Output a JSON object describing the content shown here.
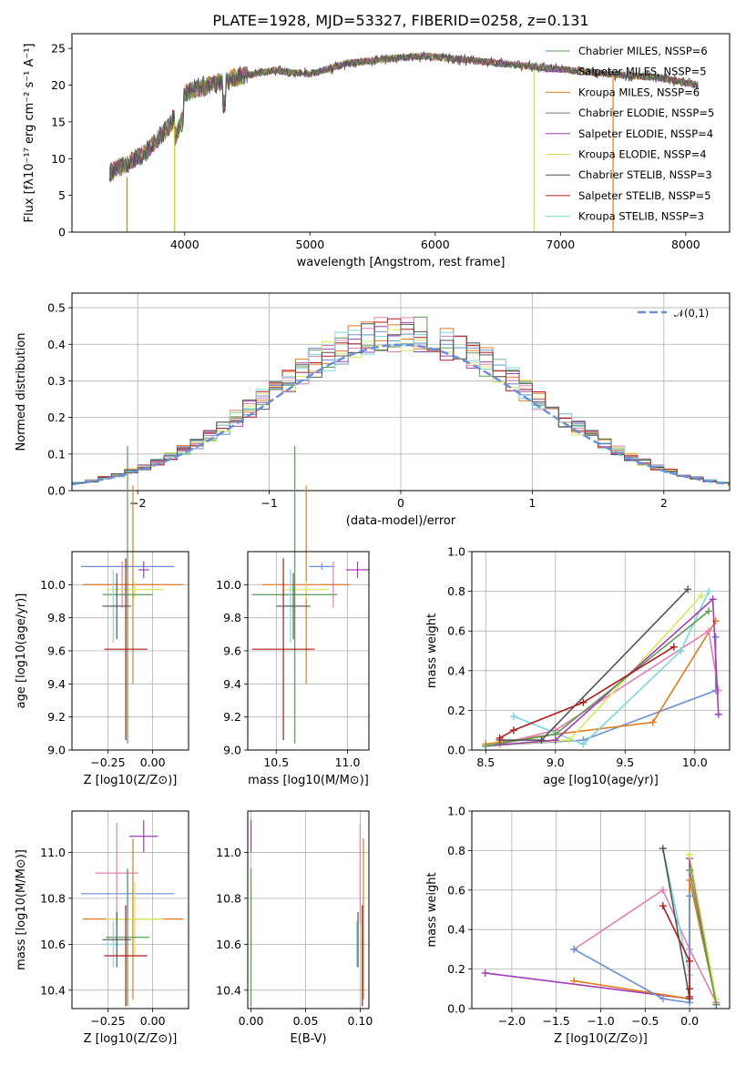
{
  "chart_data": [
    {
      "id": "spectrum",
      "type": "line",
      "title": "PLATE=1928, MJD=53327, FIBERID=0258, z=0.131",
      "xlabel": "wavelength [Angstrom, rest frame]",
      "ylabel": "Flux [fλ10⁻¹⁷ erg cm⁻² s⁻¹ A⁻¹]",
      "xlim": [
        3100,
        8350
      ],
      "ylim": [
        0,
        27
      ],
      "xticks": [
        "4000",
        "5000",
        "6000",
        "7000",
        "8000"
      ],
      "yticks": [
        "0",
        "5",
        "10",
        "15",
        "20",
        "25"
      ],
      "legend_position": "right",
      "series": [
        {
          "name": "Chabrier MILES, NSSP=6",
          "color": "#5a9a55"
        },
        {
          "name": "Salpeter MILES, NSSP=5",
          "color": "#9a40b0"
        },
        {
          "name": "Kroupa MILES, NSSP=6",
          "color": "#e07b1e"
        },
        {
          "name": "Chabrier ELODIE, NSSP=5",
          "color": "#5e8a5c"
        },
        {
          "name": "Salpeter ELODIE, NSSP=4",
          "color": "#a23cb4"
        },
        {
          "name": "Kroupa ELODIE, NSSP=4",
          "color": "#dada4a"
        },
        {
          "name": "Chabrier STELIB, NSSP=3",
          "color": "#555555"
        },
        {
          "name": "Salpeter STELIB, NSSP=5",
          "color": "#b01a1a"
        },
        {
          "name": "Kroupa STELIB, NSSP=3",
          "color": "#7fd6e0"
        }
      ],
      "continuum_points": [
        [
          3400,
          8
        ],
        [
          3500,
          9
        ],
        [
          3700,
          11
        ],
        [
          3900,
          15
        ],
        [
          4000,
          19
        ],
        [
          4200,
          20
        ],
        [
          4400,
          21
        ],
        [
          4700,
          22
        ],
        [
          5000,
          21.5
        ],
        [
          5300,
          23
        ],
        [
          5600,
          23.5
        ],
        [
          5900,
          24
        ],
        [
          6200,
          23.5
        ],
        [
          6500,
          23
        ],
        [
          6800,
          22.5
        ],
        [
          7100,
          22
        ],
        [
          7400,
          21.5
        ],
        [
          7800,
          21
        ],
        [
          8100,
          20
        ]
      ]
    },
    {
      "id": "residuals",
      "type": "histogram",
      "xlabel": "(data-model)/error",
      "ylabel": "Normed distribution",
      "xlim": [
        -2.5,
        2.5
      ],
      "ylim": [
        0,
        0.54
      ],
      "xticks": [
        "−2",
        "−1",
        "0",
        "1",
        "2"
      ],
      "yticks": [
        "0.0",
        "0.1",
        "0.2",
        "0.3",
        "0.4",
        "0.5"
      ],
      "reference_curve": {
        "name": "𝒩(0,1)",
        "mean": 0,
        "sigma": 1
      },
      "histogram_colors": [
        "#5a9a55",
        "#9a40b0",
        "#e07b1e",
        "#e27fb0",
        "#6b8fd6",
        "#d8e85a",
        "#b01a1a",
        "#7fd6e0",
        "#555555"
      ]
    },
    {
      "id": "age-vs-Z",
      "type": "errorbar",
      "xlabel": "Z [log10(Z/Z⊙)]",
      "ylabel": "age  [log10(age/yr)]",
      "xlim": [
        -0.45,
        0.2
      ],
      "ylim": [
        9.0,
        10.2
      ],
      "xticks": [
        "−0.25",
        "0.00"
      ],
      "yticks": [
        "9.0",
        "9.2",
        "9.4",
        "9.6",
        "9.8",
        "10.0"
      ],
      "points": [
        {
          "x": -0.14,
          "xerr": 0.26,
          "y": 10.11,
          "yerr": 0.02,
          "color": "#6b8fd6"
        },
        {
          "x": -0.05,
          "xerr": 0.03,
          "y": 10.09,
          "yerr": 0.05,
          "color": "#a23cb4"
        },
        {
          "x": -0.17,
          "xerr": 0.22,
          "y": 10.0,
          "yerr": 0.14,
          "color": "#e27fb0"
        },
        {
          "x": -0.11,
          "xerr": 0.28,
          "y": 10.0,
          "yerr": 0.6,
          "color": "#e07b1e"
        },
        {
          "x": -0.1,
          "xerr": 0.16,
          "y": 9.97,
          "yerr": 0.05,
          "color": "#d8e85a"
        },
        {
          "x": -0.14,
          "xerr": 0.14,
          "y": 9.94,
          "yerr": 0.9,
          "color": "#5a9a55"
        },
        {
          "x": -0.22,
          "xerr": 0.05,
          "y": 9.87,
          "yerr": 0.22,
          "color": "#7fd6e0"
        },
        {
          "x": -0.2,
          "xerr": 0.08,
          "y": 9.87,
          "yerr": 0.2,
          "color": "#555555"
        },
        {
          "x": -0.15,
          "xerr": 0.12,
          "y": 9.61,
          "yerr": 0.55,
          "color": "#b01a1a"
        }
      ]
    },
    {
      "id": "age-vs-mass",
      "type": "errorbar",
      "xlabel": "mass [log10(M/M⊙)]",
      "ylabel": "",
      "xlim": [
        10.3,
        11.15
      ],
      "ylim": [
        9.0,
        10.2
      ],
      "xticks": [
        "10.5",
        "11.0"
      ],
      "yticks": [
        "9.0",
        "9.2",
        "9.4",
        "9.6",
        "9.8",
        "10.0"
      ],
      "points": [
        {
          "x": 10.82,
          "xerr": 0.09,
          "y": 10.11,
          "yerr": 0.02,
          "color": "#6b8fd6"
        },
        {
          "x": 11.07,
          "xerr": 0.08,
          "y": 10.09,
          "yerr": 0.05,
          "color": "#a23cb4"
        },
        {
          "x": 10.9,
          "xerr": 0.07,
          "y": 10.0,
          "yerr": 0.14,
          "color": "#e27fb0"
        },
        {
          "x": 10.71,
          "xerr": 0.31,
          "y": 10.0,
          "yerr": 0.6,
          "color": "#e07b1e"
        },
        {
          "x": 10.71,
          "xerr": 0.16,
          "y": 9.97,
          "yerr": 0.05,
          "color": "#d8e85a"
        },
        {
          "x": 10.63,
          "xerr": 0.3,
          "y": 9.94,
          "yerr": 0.9,
          "color": "#5a9a55"
        },
        {
          "x": 10.6,
          "xerr": 0.1,
          "y": 9.87,
          "yerr": 0.22,
          "color": "#7fd6e0"
        },
        {
          "x": 10.62,
          "xerr": 0.12,
          "y": 9.87,
          "yerr": 0.2,
          "color": "#555555"
        },
        {
          "x": 10.55,
          "xerr": 0.22,
          "y": 9.61,
          "yerr": 0.55,
          "color": "#b01a1a"
        }
      ]
    },
    {
      "id": "weight-vs-age",
      "type": "line",
      "xlabel": "age  [log10(age/yr)]",
      "ylabel": "mass weight",
      "xlim": [
        8.4,
        10.25
      ],
      "ylim": [
        0,
        1.0
      ],
      "xticks": [
        "8.5",
        "9.0",
        "9.5",
        "10.0"
      ],
      "yticks": [
        "0.0",
        "0.2",
        "0.4",
        "0.6",
        "0.8",
        "1.0"
      ],
      "series": [
        {
          "color": "#6b8fd6",
          "points": [
            [
              8.5,
              0.02
            ],
            [
              9.2,
              0.05
            ],
            [
              10.15,
              0.3
            ],
            [
              10.15,
              0.57
            ]
          ]
        },
        {
          "color": "#e07b1e",
          "points": [
            [
              8.5,
              0.03
            ],
            [
              9.0,
              0.08
            ],
            [
              9.7,
              0.14
            ],
            [
              10.15,
              0.65
            ]
          ]
        },
        {
          "color": "#e27fb0",
          "points": [
            [
              8.6,
              0.03
            ],
            [
              9.0,
              0.1
            ],
            [
              10.1,
              0.6
            ],
            [
              10.17,
              0.3
            ]
          ]
        },
        {
          "color": "#7fd6e0",
          "points": [
            [
              8.7,
              0.17
            ],
            [
              9.2,
              0.03
            ],
            [
              9.9,
              0.5
            ],
            [
              10.1,
              0.8
            ]
          ]
        },
        {
          "color": "#d8e85a",
          "points": [
            [
              8.5,
              0.02
            ],
            [
              9.1,
              0.05
            ],
            [
              10.05,
              0.78
            ]
          ]
        },
        {
          "color": "#a23cb4",
          "points": [
            [
              8.5,
              0.02
            ],
            [
              9.0,
              0.05
            ],
            [
              10.13,
              0.76
            ],
            [
              10.17,
              0.18
            ]
          ]
        },
        {
          "color": "#5a9a55",
          "points": [
            [
              8.5,
              0.02
            ],
            [
              9.0,
              0.08
            ],
            [
              10.1,
              0.7
            ]
          ]
        },
        {
          "color": "#555555",
          "points": [
            [
              8.6,
              0.05
            ],
            [
              8.9,
              0.05
            ],
            [
              9.95,
              0.81
            ]
          ]
        },
        {
          "color": "#b01a1a",
          "points": [
            [
              8.6,
              0.06
            ],
            [
              8.7,
              0.1
            ],
            [
              9.2,
              0.24
            ],
            [
              9.85,
              0.52
            ]
          ]
        }
      ]
    },
    {
      "id": "mass-vs-Z",
      "type": "errorbar",
      "xlabel": "Z [log10(Z/Z⊙)]",
      "ylabel": "mass [log10(M/M⊙)]",
      "xlim": [
        -0.45,
        0.2
      ],
      "ylim": [
        10.32,
        11.18
      ],
      "xticks": [
        "−0.25",
        "0.00"
      ],
      "yticks": [
        "10.4",
        "10.6",
        "10.8",
        "11.0"
      ],
      "points": [
        {
          "x": -0.05,
          "xerr": 0.08,
          "y": 11.07,
          "yerr": 0.07,
          "color": "#a23cb4"
        },
        {
          "x": -0.2,
          "xerr": 0.12,
          "y": 10.91,
          "yerr": 0.22,
          "color": "#e27fb0"
        },
        {
          "x": -0.14,
          "xerr": 0.26,
          "y": 10.82,
          "yerr": 0.1,
          "color": "#6b8fd6"
        },
        {
          "x": -0.11,
          "xerr": 0.28,
          "y": 10.71,
          "yerr": 0.35,
          "color": "#e07b1e"
        },
        {
          "x": -0.1,
          "xerr": 0.16,
          "y": 10.71,
          "yerr": 0.16,
          "color": "#d8e85a"
        },
        {
          "x": -0.14,
          "xerr": 0.12,
          "y": 10.63,
          "yerr": 0.3,
          "color": "#5a9a55"
        },
        {
          "x": -0.22,
          "xerr": 0.05,
          "y": 10.6,
          "yerr": 0.1,
          "color": "#7fd6e0"
        },
        {
          "x": -0.2,
          "xerr": 0.08,
          "y": 10.62,
          "yerr": 0.12,
          "color": "#555555"
        },
        {
          "x": -0.15,
          "xerr": 0.12,
          "y": 10.55,
          "yerr": 0.22,
          "color": "#b01a1a"
        }
      ]
    },
    {
      "id": "mass-vs-EBV",
      "type": "errorbar",
      "xlabel": "E(B-V)",
      "ylabel": "",
      "xlim": [
        -0.003,
        0.108
      ],
      "ylim": [
        10.32,
        11.18
      ],
      "xticks": [
        "0.00",
        "0.05",
        "0.10"
      ],
      "yticks": [
        "10.4",
        "10.6",
        "10.8",
        "11.0"
      ],
      "points": [
        {
          "x": 0.0,
          "xerr": 0,
          "y": 11.07,
          "yerr": 0.07,
          "color": "#a23cb4"
        },
        {
          "x": 0.0,
          "xerr": 0,
          "y": 10.71,
          "yerr": 0.16,
          "color": "#d8e85a"
        },
        {
          "x": 0.0,
          "xerr": 0,
          "y": 10.63,
          "yerr": 0.3,
          "color": "#5a9a55"
        },
        {
          "x": 0.1,
          "xerr": 0,
          "y": 10.91,
          "yerr": 0.22,
          "color": "#e27fb0"
        },
        {
          "x": 0.103,
          "xerr": 0,
          "y": 10.71,
          "yerr": 0.35,
          "color": "#e07b1e"
        },
        {
          "x": 0.102,
          "xerr": 0,
          "y": 10.55,
          "yerr": 0.22,
          "color": "#b01a1a"
        },
        {
          "x": 0.097,
          "xerr": 0,
          "y": 10.6,
          "yerr": 0.1,
          "color": "#7fd6e0"
        },
        {
          "x": 0.098,
          "xerr": 0,
          "y": 10.62,
          "yerr": 0.12,
          "color": "#555555"
        }
      ]
    },
    {
      "id": "weight-vs-Z",
      "type": "line",
      "xlabel": "Z [log10(Z/Z⊙)]",
      "ylabel": "mass weight",
      "xlim": [
        -2.45,
        0.45
      ],
      "ylim": [
        0,
        1.0
      ],
      "xticks": [
        "−2.0",
        "−1.5",
        "−1.0",
        "−0.5",
        "0.0"
      ],
      "yticks": [
        "0.0",
        "0.2",
        "0.4",
        "0.6",
        "0.8",
        "1.0"
      ],
      "series": [
        {
          "color": "#a23cb4",
          "points": [
            [
              -2.3,
              0.18
            ],
            [
              0.0,
              0.05
            ],
            [
              0.0,
              0.76
            ],
            [
              0.3,
              0.02
            ]
          ]
        },
        {
          "color": "#e07b1e",
          "points": [
            [
              -1.3,
              0.14
            ],
            [
              0.0,
              0.05
            ],
            [
              0.0,
              0.65
            ],
            [
              0.3,
              0.03
            ]
          ]
        },
        {
          "color": "#e27fb0",
          "points": [
            [
              -1.3,
              0.3
            ],
            [
              -0.3,
              0.6
            ],
            [
              0.0,
              0.3
            ],
            [
              0.3,
              0.03
            ]
          ]
        },
        {
          "color": "#6b8fd6",
          "points": [
            [
              -1.3,
              0.3
            ],
            [
              -0.3,
              0.05
            ],
            [
              0.0,
              0.03
            ],
            [
              0.0,
              0.57
            ]
          ]
        },
        {
          "color": "#7fd6e0",
          "points": [
            [
              -0.3,
              0.81
            ],
            [
              0.0,
              0.17
            ],
            [
              0.0,
              0.05
            ]
          ]
        },
        {
          "color": "#555555",
          "points": [
            [
              -0.3,
              0.81
            ],
            [
              0.0,
              0.05
            ]
          ]
        },
        {
          "color": "#b01a1a",
          "points": [
            [
              -0.3,
              0.52
            ],
            [
              0.0,
              0.24
            ],
            [
              0.0,
              0.06
            ],
            [
              0.0,
              0.1
            ]
          ]
        },
        {
          "color": "#d8e85a",
          "points": [
            [
              0.0,
              0.78
            ],
            [
              0.3,
              0.05
            ]
          ]
        },
        {
          "color": "#5a9a55",
          "points": [
            [
              0.0,
              0.7
            ],
            [
              0.3,
              0.02
            ]
          ]
        }
      ]
    }
  ]
}
